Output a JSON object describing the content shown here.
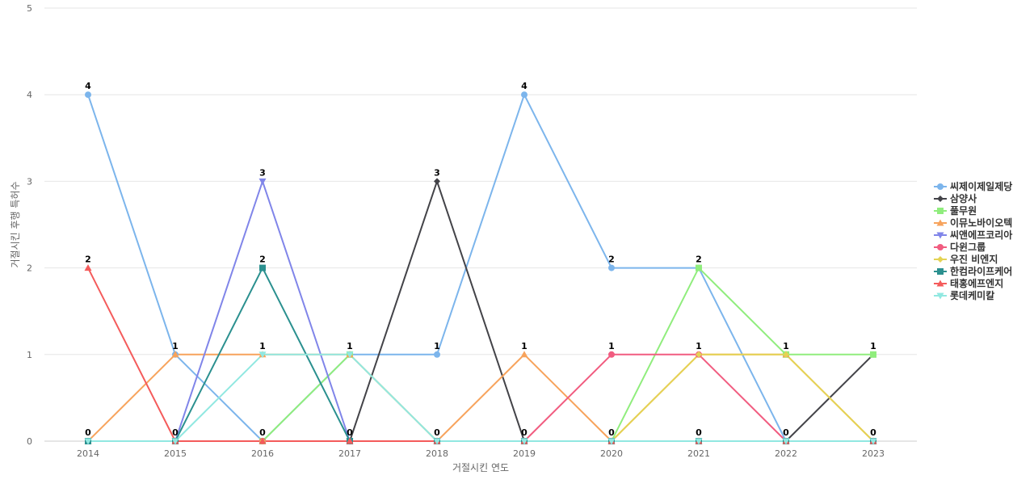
{
  "chart_data": {
    "type": "line",
    "title": "",
    "xlabel": "거절시킨 연도",
    "ylabel": "거절시킨 후행 특허수",
    "categories": [
      "2014",
      "2015",
      "2016",
      "2017",
      "2018",
      "2019",
      "2020",
      "2021",
      "2022",
      "2023"
    ],
    "ylim": [
      0,
      5
    ],
    "yticks": [
      "0",
      "1",
      "2",
      "3",
      "4",
      "5"
    ],
    "grid": true,
    "legend_position": "right",
    "series": [
      {
        "name": "씨제이제일제당",
        "color": "#7cb5ec",
        "marker": "circle",
        "values": [
          4,
          1,
          0,
          1,
          1,
          4,
          2,
          2,
          0,
          0
        ]
      },
      {
        "name": "삼양사",
        "color": "#434348",
        "marker": "diamond",
        "values": [
          0,
          0,
          0,
          0,
          3,
          0,
          0,
          0,
          0,
          1
        ]
      },
      {
        "name": "풀무원",
        "color": "#90ed7d",
        "marker": "square",
        "values": [
          0,
          0,
          0,
          1,
          0,
          0,
          0,
          2,
          1,
          1
        ]
      },
      {
        "name": "이뮤노바이오텍",
        "color": "#f7a35c",
        "marker": "triangle",
        "values": [
          0,
          1,
          1,
          1,
          0,
          1,
          0,
          1,
          1,
          0
        ]
      },
      {
        "name": "씨앤에프코리아",
        "color": "#8085e9",
        "marker": "triangle-down",
        "values": [
          0,
          0,
          3,
          0,
          0,
          0,
          0,
          0,
          0,
          0
        ]
      },
      {
        "name": "다윈그룹",
        "color": "#f15c80",
        "marker": "circle",
        "values": [
          0,
          0,
          0,
          0,
          0,
          0,
          1,
          1,
          0,
          0
        ]
      },
      {
        "name": "우진 비엔지",
        "color": "#e4d354",
        "marker": "diamond",
        "values": [
          0,
          0,
          0,
          0,
          0,
          0,
          0,
          1,
          1,
          0
        ]
      },
      {
        "name": "한컴라이프케어",
        "color": "#2b908f",
        "marker": "square",
        "values": [
          0,
          0,
          2,
          0,
          0,
          0,
          0,
          0,
          0,
          0
        ]
      },
      {
        "name": "태홍에프엔지",
        "color": "#f45b5b",
        "marker": "triangle",
        "values": [
          2,
          0,
          0,
          0,
          0,
          0,
          0,
          0,
          0,
          0
        ]
      },
      {
        "name": "롯데케미칼",
        "color": "#91e8e1",
        "marker": "triangle-down",
        "values": [
          0,
          0,
          1,
          1,
          0,
          0,
          0,
          0,
          0,
          0
        ]
      }
    ]
  }
}
